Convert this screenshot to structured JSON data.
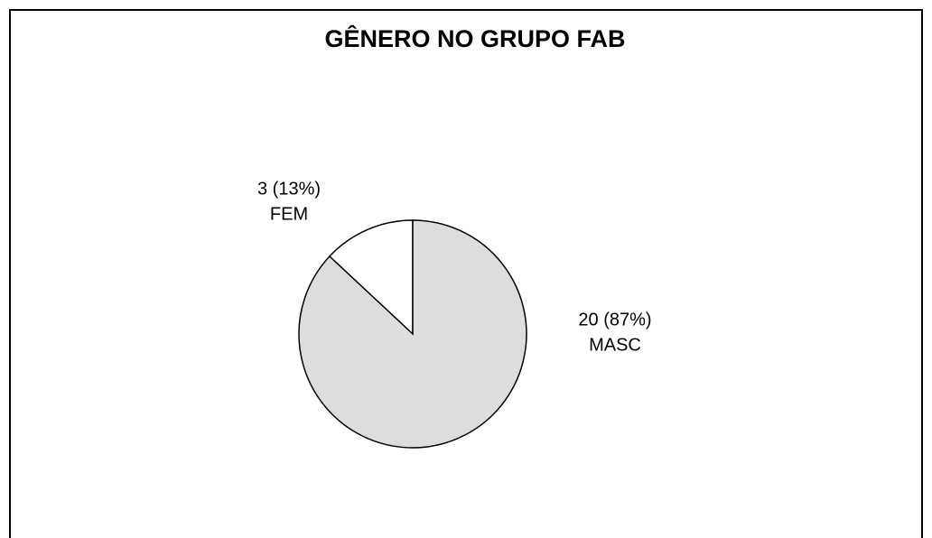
{
  "chart_data": {
    "type": "pie",
    "title": "GÊNERO NO GRUPO FAB",
    "categories": [
      "FEM",
      "MASC"
    ],
    "values": [
      3,
      20
    ],
    "value_labels": [
      "3 (13%)",
      "20 (87%)"
    ],
    "colors": [
      "#ffffff",
      "#dddddd"
    ]
  }
}
